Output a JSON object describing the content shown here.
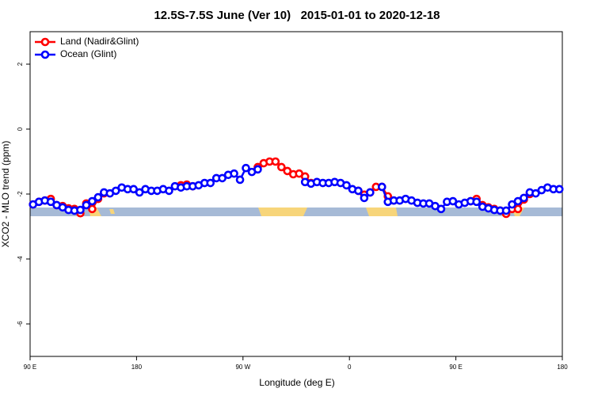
{
  "chart_data": {
    "type": "line",
    "title": "12.5S-7.5S June (Ver 10)   2015-01-01 to 2020-12-18",
    "xlabel": "Longitude (deg E)",
    "ylabel": "XCO2 - MLO trend (ppm)",
    "xlim": [
      90,
      540
    ],
    "ylim": [
      -7,
      3
    ],
    "xticks": [
      {
        "value": 90,
        "label": "90 E"
      },
      180,
      {
        "value": 270,
        "label": "90 W"
      },
      {
        "value": 360,
        "label": "0"
      },
      {
        "value": 450,
        "label": "90 E"
      },
      {
        "value": 540,
        "label": "180"
      }
    ],
    "yticks": [
      2,
      0,
      -2,
      -4,
      -6
    ],
    "legend": "top-left",
    "x": [
      92.5,
      97.5,
      102.5,
      107.5,
      112.5,
      117.5,
      122.5,
      127.5,
      132.5,
      137.5,
      142.5,
      147.5,
      152.5,
      157.5,
      162.5,
      167.5,
      172.5,
      177.5,
      182.5,
      187.5,
      192.5,
      197.5,
      202.5,
      207.5,
      212.5,
      217.5,
      222.5,
      227.5,
      232.5,
      237.5,
      242.5,
      247.5,
      252.5,
      257.5,
      262.5,
      267.5,
      272.5,
      277.5,
      282.5,
      287.5,
      292.5,
      297.5,
      302.5,
      307.5,
      312.5,
      317.5,
      322.5,
      327.5,
      332.5,
      337.5,
      342.5,
      347.5,
      352.5,
      357.5,
      362.5,
      367.5,
      372.5,
      377.5,
      382.5,
      387.5,
      392.5,
      397.5,
      402.5,
      407.5,
      412.5,
      417.5,
      422.5,
      427.5,
      432.5,
      437.5,
      442.5,
      447.5,
      452.5,
      457.5,
      462.5,
      467.5,
      472.5,
      477.5,
      482.5,
      487.5,
      492.5,
      497.5,
      502.5,
      507.5,
      512.5,
      517.5,
      522.5,
      527.5,
      532.5,
      537.5
    ],
    "series": [
      {
        "name": "Land (Nadir&Glint)",
        "color": "#ff0000",
        "values": [
          -2.32,
          -2.24,
          -2.2,
          -2.15,
          -2.34,
          -2.37,
          -2.44,
          -2.46,
          -2.59,
          -2.29,
          -2.46,
          -2.15,
          -1.98,
          null,
          null,
          null,
          null,
          null,
          null,
          null,
          null,
          null,
          null,
          null,
          null,
          -1.73,
          -1.71,
          -1.76,
          null,
          null,
          null,
          null,
          null,
          null,
          null,
          null,
          null,
          null,
          -1.17,
          -1.05,
          -1.0,
          -1.0,
          -1.17,
          -1.29,
          -1.39,
          -1.37,
          -1.46,
          -1.66,
          null,
          null,
          null,
          null,
          null,
          null,
          null,
          -1.9,
          -2.02,
          -1.95,
          -1.78,
          -1.78,
          -2.07,
          -2.2,
          null,
          null,
          null,
          null,
          null,
          null,
          null,
          null,
          null,
          null,
          null,
          null,
          -2.22,
          -2.15,
          -2.34,
          -2.41,
          -2.46,
          -2.51,
          -2.61,
          -2.46,
          -2.46,
          -2.17,
          -2.0,
          null,
          null,
          null,
          null,
          null
        ]
      },
      {
        "name": "Ocean (Glint)",
        "color": "#0000ff",
        "values": [
          -2.32,
          -2.24,
          -2.2,
          -2.24,
          -2.34,
          -2.41,
          -2.49,
          -2.51,
          -2.49,
          -2.34,
          -2.22,
          -2.1,
          -1.95,
          -1.98,
          -1.9,
          -1.8,
          -1.85,
          -1.85,
          -1.95,
          -1.85,
          -1.9,
          -1.9,
          -1.85,
          -1.9,
          -1.76,
          -1.8,
          -1.76,
          -1.76,
          -1.73,
          -1.66,
          -1.66,
          -1.51,
          -1.51,
          -1.41,
          -1.37,
          -1.56,
          -1.2,
          -1.32,
          -1.24,
          null,
          null,
          null,
          null,
          null,
          null,
          null,
          -1.63,
          -1.68,
          -1.63,
          -1.66,
          -1.66,
          -1.63,
          -1.66,
          -1.73,
          -1.85,
          -1.9,
          -2.12,
          -1.95,
          null,
          -1.78,
          -2.24,
          -2.2,
          -2.2,
          -2.15,
          -2.2,
          -2.27,
          -2.29,
          -2.29,
          -2.37,
          -2.46,
          -2.24,
          -2.22,
          -2.32,
          -2.27,
          -2.22,
          -2.24,
          -2.39,
          -2.44,
          -2.49,
          -2.51,
          -2.51,
          -2.32,
          -2.22,
          -2.12,
          -1.95,
          -1.98,
          -1.88,
          -1.8,
          -1.85,
          -1.85
        ]
      }
    ]
  }
}
